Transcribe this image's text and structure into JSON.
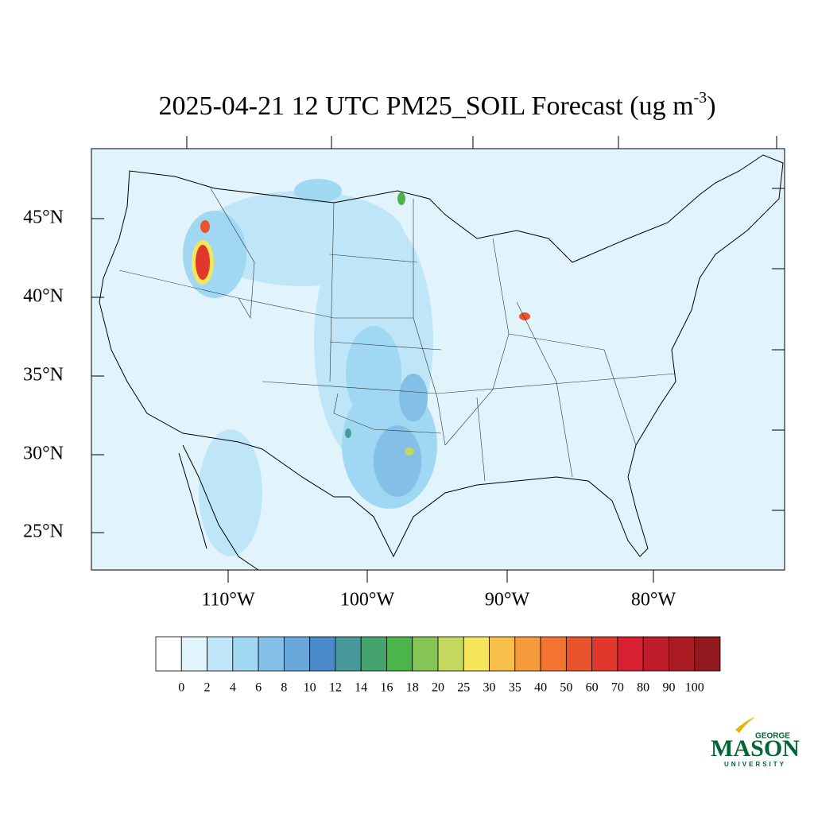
{
  "title": {
    "text": "2025-04-21 12 UTC PM25_SOIL Forecast (ug m",
    "superscript": "-3",
    "suffix": ")"
  },
  "map": {
    "lat_labels": [
      "45°N",
      "40°N",
      "35°N",
      "30°N",
      "25°N"
    ],
    "lon_labels": [
      "110°W",
      "100°W",
      "90°W",
      "80°W"
    ]
  },
  "colorbar": {
    "colors": [
      "#ffffff",
      "#e1f3fb",
      "#bfe6f8",
      "#a0d8f3",
      "#83bfe6",
      "#68a8db",
      "#4a8ac8",
      "#47999a",
      "#45a46e",
      "#4bb54a",
      "#84c556",
      "#c2d95e",
      "#f5e65c",
      "#f8bf4a",
      "#f59b3c",
      "#f47331",
      "#e9542d",
      "#e0392c",
      "#d72030",
      "#c01d2a",
      "#aa1b24",
      "#921a1f"
    ],
    "labels": [
      "0",
      "2",
      "4",
      "6",
      "8",
      "10",
      "12",
      "14",
      "16",
      "18",
      "20",
      "25",
      "30",
      "35",
      "40",
      "50",
      "60",
      "70",
      "80",
      "90",
      "100"
    ]
  },
  "logo": {
    "top": "GEORGE",
    "main": "MASON",
    "bottom": "UNIVERSITY"
  }
}
